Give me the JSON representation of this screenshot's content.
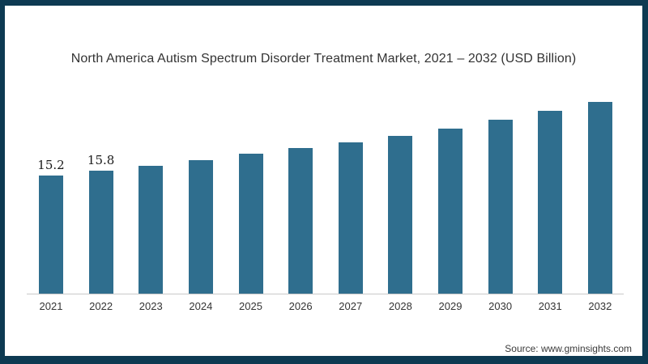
{
  "frame": {
    "border_color": "#0d3a52",
    "background": "#ffffff"
  },
  "source": "Source: www.gminsights.com",
  "chart_data": {
    "type": "bar",
    "title": "North America Autism Spectrum Disorder Treatment Market, 2021 – 2032 (USD Billion)",
    "categories": [
      "2021",
      "2022",
      "2023",
      "2024",
      "2025",
      "2026",
      "2027",
      "2028",
      "2029",
      "2030",
      "2031",
      "2032"
    ],
    "values": [
      15.2,
      15.8,
      16.5,
      17.2,
      18.0,
      18.7,
      19.5,
      20.3,
      21.3,
      22.4,
      23.5,
      24.7
    ],
    "data_labels": [
      "15.2",
      "15.8",
      null,
      null,
      null,
      null,
      null,
      null,
      null,
      null,
      null,
      null
    ],
    "xlabel": "",
    "ylabel": "",
    "unit": "USD Billion",
    "ylim": [
      0,
      25
    ],
    "grid": false,
    "legend": false,
    "bar_color": "#2f6e8e",
    "axis_line_color": "#c9c9c9",
    "title_color": "#333333",
    "label_color": "#1a1a1a",
    "tick_color": "#333333"
  }
}
